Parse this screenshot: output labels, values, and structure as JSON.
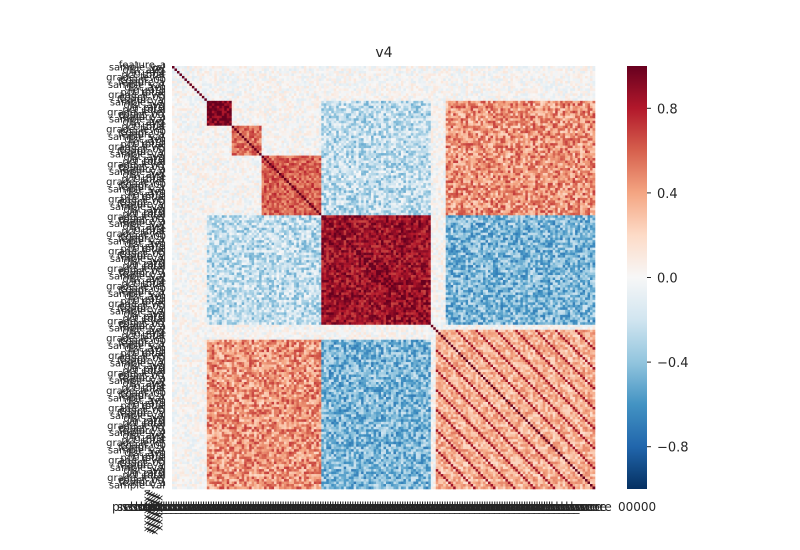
{
  "chart_data": {
    "type": "heatmap",
    "title": "v4",
    "value_range": [
      -1,
      1
    ],
    "colormap": "RdBu_r",
    "colorbar": {
      "ticks": [
        0.8,
        0.4,
        0.0,
        -0.4,
        -0.8
      ],
      "tick_labels": [
        "0.8",
        "0.4",
        "0.0",
        "−0.4",
        "−0.8"
      ]
    },
    "matrix": {
      "size": 170,
      "diagonal": 1.0,
      "blocks": [
        {
          "start": 14,
          "end": 24,
          "value": 0.95
        },
        {
          "start": 24,
          "end": 36,
          "value": 0.55
        },
        {
          "start": 36,
          "end": 60,
          "value": 0.6
        },
        {
          "start": 60,
          "end": 104,
          "value": 0.85
        },
        {
          "start": 106,
          "end": 170,
          "value": 0.35
        }
      ],
      "cross_blocks": [
        {
          "rows": [
            14,
            60
          ],
          "cols": [
            60,
            104
          ],
          "value": -0.25
        },
        {
          "rows": [
            14,
            60
          ],
          "cols": [
            110,
            170
          ],
          "value": 0.45
        },
        {
          "rows": [
            60,
            104
          ],
          "cols": [
            110,
            170
          ],
          "value": -0.45
        }
      ],
      "note_values": "correlation coefficients between 170 features; individual cell values estimated from colour"
    },
    "x_tick_labels_visible": [
      "presch",
      "00000"
    ],
    "y_tick_labels_visible": [
      "lg"
    ],
    "legend": "colorbar-right"
  }
}
